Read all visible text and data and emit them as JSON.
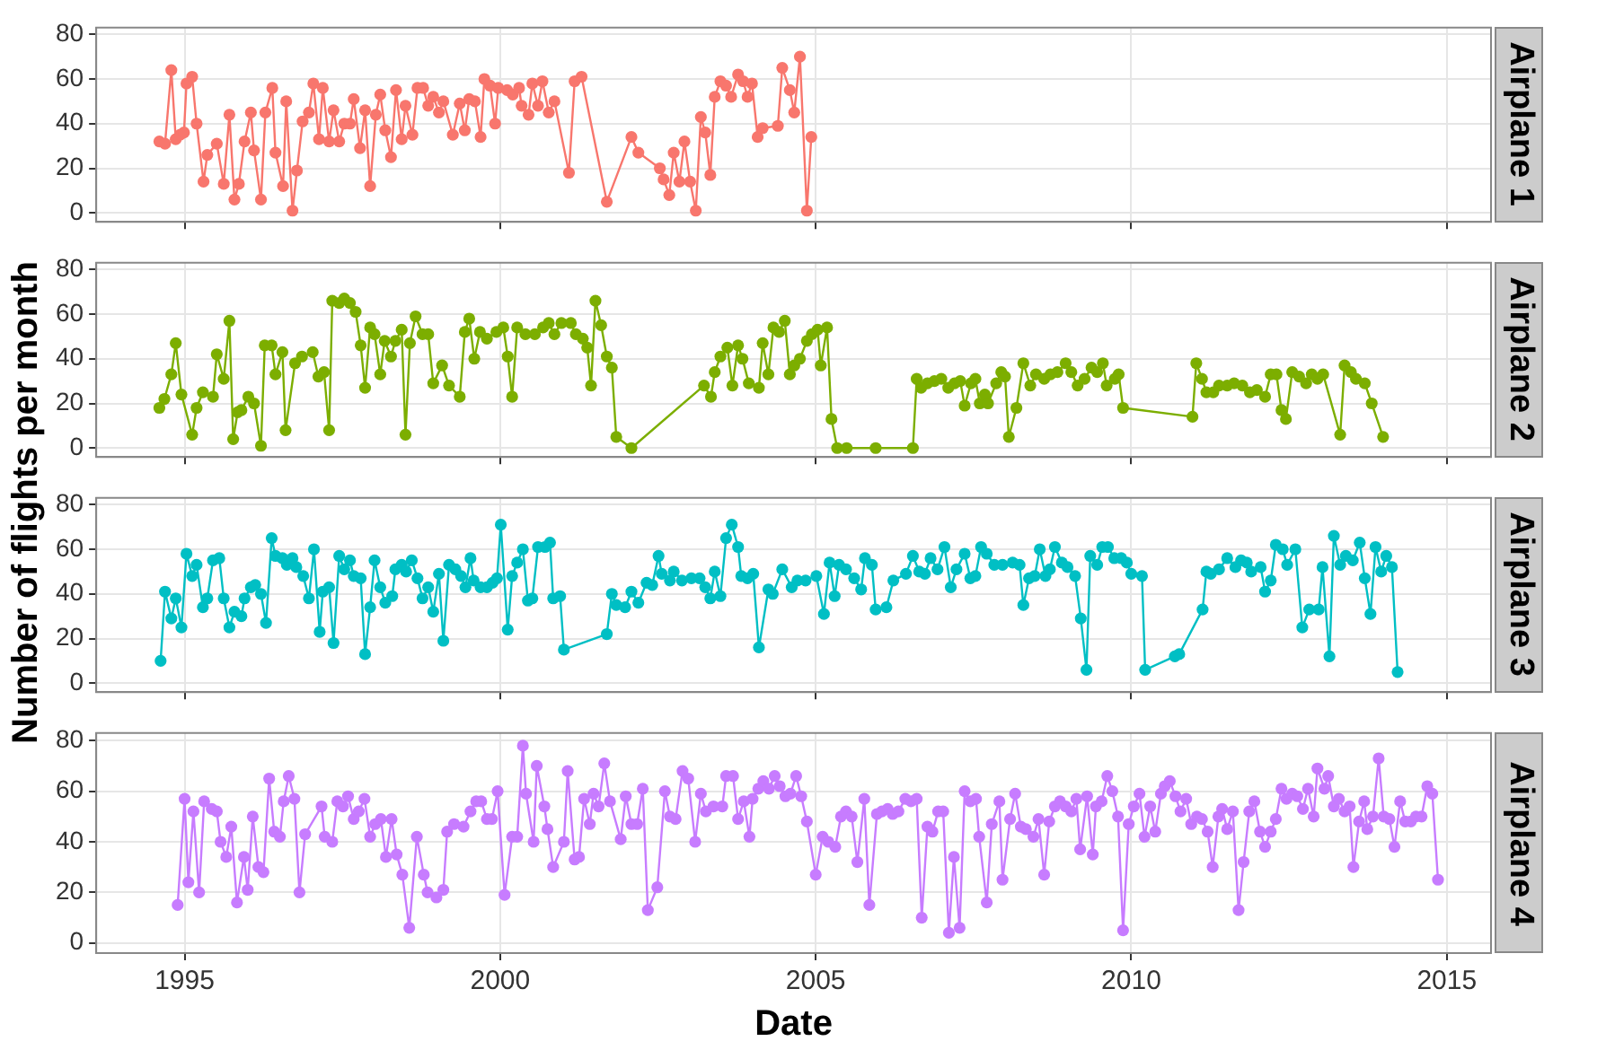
{
  "chart_data": [
    {
      "type": "line",
      "ylabel": "Number of flights per month",
      "marker": "circle",
      "grid": true,
      "legend": false,
      "tick_labels": "y",
      "xlim": [
        1993.6,
        2015.7
      ],
      "xticks": [
        1995,
        2000,
        2005,
        2010,
        2015
      ],
      "ylim": [
        -4,
        83
      ],
      "yticks": [
        0,
        20,
        40,
        60,
        80
      ],
      "series": [
        {
          "name": "Airplane 1",
          "color": "#f8766d",
          "x": [
            1994.6,
            1994.69,
            1994.79,
            1994.86,
            1994.93,
            1994.99,
            1995.03,
            1995.12,
            1995.19,
            1995.3,
            1995.36,
            1995.51,
            1995.62,
            1995.71,
            1995.79,
            1995.86,
            1995.95,
            1996.05,
            1996.1,
            1996.21,
            1996.28,
            1996.39,
            1996.44,
            1996.56,
            1996.61,
            1996.71,
            1996.78,
            1996.87,
            1996.97,
            1997.04,
            1997.13,
            1997.19,
            1997.29,
            1997.36,
            1997.45,
            1997.53,
            1997.62,
            1997.68,
            1997.78,
            1997.86,
            1997.94,
            1998.03,
            1998.1,
            1998.18,
            1998.27,
            1998.35,
            1998.44,
            1998.5,
            1998.61,
            1998.69,
            1998.78,
            1998.86,
            1998.94,
            1999.03,
            1999.1,
            1999.25,
            1999.36,
            1999.44,
            1999.51,
            1999.6,
            1999.69,
            1999.75,
            1999.84,
            1999.92,
            1999.97,
            2000.11,
            2000.2,
            2000.3,
            2000.34,
            2000.45,
            2000.51,
            2000.6,
            2000.67,
            2000.77,
            2000.86,
            2001.09,
            2001.18,
            2001.29,
            2001.69,
            2002.08,
            2002.19,
            2002.53,
            2002.59,
            2002.68,
            2002.75,
            2002.84,
            2002.92,
            2003.01,
            2003.1,
            2003.18,
            2003.25,
            2003.33,
            2003.4,
            2003.49,
            2003.58,
            2003.66,
            2003.77,
            2003.85,
            2003.92,
            2003.99,
            2004.08,
            2004.16,
            2004.4,
            2004.47,
            2004.59,
            2004.66,
            2004.75,
            2004.86,
            2004.93
          ],
          "values": [
            32,
            31,
            64,
            33,
            35,
            36,
            58,
            61,
            40,
            14,
            26,
            31,
            13,
            44,
            6,
            13,
            32,
            45,
            28,
            6,
            45,
            56,
            27,
            12,
            50,
            1,
            19,
            41,
            45,
            58,
            33,
            56,
            32,
            46,
            32,
            40,
            40,
            51,
            29,
            46,
            12,
            44,
            53,
            37,
            25,
            55,
            33,
            48,
            35,
            56,
            56,
            48,
            52,
            45,
            50,
            35,
            49,
            37,
            51,
            50,
            34,
            60,
            57,
            40,
            56,
            55,
            53,
            56,
            48,
            44,
            58,
            48,
            59,
            45,
            50,
            18,
            59,
            61,
            5,
            34,
            27,
            20,
            15,
            8,
            27,
            14,
            32,
            14,
            1,
            43,
            36,
            17,
            52,
            59,
            57,
            52,
            62,
            59,
            52,
            58,
            34,
            38,
            39,
            65,
            55,
            45,
            70,
            1,
            34
          ]
        }
      ]
    },
    {
      "type": "line",
      "marker": "circle",
      "grid": true,
      "legend": false,
      "tick_labels": "y",
      "xlim": [
        1993.6,
        2015.7
      ],
      "xticks": [
        1995,
        2000,
        2005,
        2010,
        2015
      ],
      "ylim": [
        -4,
        83
      ],
      "yticks": [
        0,
        20,
        40,
        60,
        80
      ],
      "series": [
        {
          "name": "Airplane 2",
          "color": "#7cae00",
          "x": [
            1994.6,
            1994.68,
            1994.79,
            1994.86,
            1994.95,
            1995.12,
            1995.19,
            1995.29,
            1995.45,
            1995.51,
            1995.62,
            1995.71,
            1995.77,
            1995.84,
            1995.9,
            1996.01,
            1996.1,
            1996.21,
            1996.27,
            1996.38,
            1996.44,
            1996.55,
            1996.6,
            1996.75,
            1996.86,
            1997.03,
            1997.12,
            1997.21,
            1997.29,
            1997.34,
            1997.45,
            1997.53,
            1997.62,
            1997.71,
            1997.79,
            1997.86,
            1997.94,
            1998.01,
            1998.1,
            1998.17,
            1998.27,
            1998.34,
            1998.44,
            1998.5,
            1998.57,
            1998.66,
            1998.77,
            1998.86,
            1998.94,
            1999.08,
            1999.19,
            1999.36,
            1999.44,
            1999.51,
            1999.59,
            1999.68,
            1999.79,
            1999.94,
            2000.05,
            2000.12,
            2000.19,
            2000.27,
            2000.4,
            2000.55,
            2000.68,
            2000.77,
            2000.86,
            2000.97,
            2001.12,
            2001.2,
            2001.31,
            2001.38,
            2001.44,
            2001.51,
            2001.6,
            2001.69,
            2001.77,
            2001.84,
            2002.08,
            2003.23,
            2003.34,
            2003.4,
            2003.49,
            2003.6,
            2003.68,
            2003.77,
            2003.84,
            2003.94,
            2004.1,
            2004.16,
            2004.25,
            2004.33,
            2004.42,
            2004.51,
            2004.59,
            2004.66,
            2004.75,
            2004.86,
            2004.94,
            2005.03,
            2005.08,
            2005.18,
            2005.25,
            2005.34,
            2005.49,
            2005.95,
            2006.54,
            2006.6,
            2006.67,
            2006.77,
            2006.88,
            2006.99,
            2007.1,
            2007.2,
            2007.29,
            2007.36,
            2007.46,
            2007.53,
            2007.6,
            2007.68,
            2007.73,
            2007.86,
            2007.94,
            2008.0,
            2008.06,
            2008.18,
            2008.29,
            2008.4,
            2008.49,
            2008.62,
            2008.72,
            2008.83,
            2008.96,
            2009.05,
            2009.15,
            2009.26,
            2009.37,
            2009.46,
            2009.55,
            2009.61,
            2009.74,
            2009.8,
            2009.87,
            2010.97,
            2011.03,
            2011.12,
            2011.19,
            2011.3,
            2011.39,
            2011.52,
            2011.63,
            2011.76,
            2011.88,
            2011.99,
            2012.12,
            2012.21,
            2012.3,
            2012.38,
            2012.45,
            2012.55,
            2012.66,
            2012.77,
            2012.86,
            2012.95,
            2013.04,
            2013.31,
            2013.38,
            2013.48,
            2013.56,
            2013.7,
            2013.81,
            2013.99
          ],
          "values": [
            18,
            22,
            33,
            47,
            24,
            6,
            18,
            25,
            23,
            42,
            31,
            57,
            4,
            16,
            17,
            23,
            20,
            1,
            46,
            46,
            33,
            43,
            8,
            38,
            41,
            43,
            32,
            34,
            8,
            66,
            65,
            67,
            65,
            61,
            46,
            27,
            54,
            51,
            33,
            48,
            41,
            48,
            53,
            6,
            47,
            59,
            51,
            51,
            29,
            37,
            28,
            23,
            52,
            58,
            40,
            52,
            49,
            52,
            54,
            41,
            23,
            54,
            51,
            51,
            54,
            56,
            51,
            56,
            56,
            51,
            49,
            45,
            28,
            66,
            55,
            41,
            36,
            5,
            0,
            28,
            23,
            34,
            41,
            45,
            28,
            46,
            40,
            29,
            27,
            47,
            33,
            54,
            52,
            57,
            33,
            37,
            40,
            48,
            51,
            53,
            37,
            54,
            13,
            0,
            0,
            0,
            0,
            31,
            27,
            29,
            30,
            31,
            27,
            29,
            30,
            19,
            29,
            31,
            20,
            24,
            20,
            29,
            34,
            32,
            5,
            18,
            38,
            28,
            33,
            31,
            33,
            34,
            38,
            34,
            28,
            31,
            36,
            34,
            38,
            28,
            31,
            33,
            18,
            14,
            38,
            31,
            25,
            25,
            28,
            28,
            29,
            28,
            25,
            26,
            23,
            33,
            33,
            17,
            13,
            34,
            32,
            29,
            33,
            31,
            33,
            6,
            37,
            34,
            31,
            29,
            20,
            5
          ]
        }
      ]
    },
    {
      "type": "line",
      "marker": "circle",
      "grid": true,
      "legend": false,
      "tick_labels": "y",
      "xlim": [
        1993.6,
        2015.7
      ],
      "xticks": [
        1995,
        2000,
        2005,
        2010,
        2015
      ],
      "ylim": [
        -4,
        83
      ],
      "yticks": [
        0,
        20,
        40,
        60,
        80
      ],
      "series": [
        {
          "name": "Airplane 3",
          "color": "#00bfc4",
          "x": [
            1994.62,
            1994.69,
            1994.79,
            1994.86,
            1994.95,
            1995.03,
            1995.12,
            1995.19,
            1995.29,
            1995.36,
            1995.45,
            1995.55,
            1995.62,
            1995.71,
            1995.79,
            1995.9,
            1995.95,
            1996.05,
            1996.12,
            1996.21,
            1996.29,
            1996.38,
            1996.44,
            1996.55,
            1996.62,
            1996.71,
            1996.77,
            1996.88,
            1996.97,
            1997.05,
            1997.14,
            1997.19,
            1997.29,
            1997.36,
            1997.45,
            1997.53,
            1997.62,
            1997.68,
            1997.79,
            1997.86,
            1997.94,
            1998.01,
            1998.1,
            1998.18,
            1998.29,
            1998.34,
            1998.44,
            1998.51,
            1998.6,
            1998.69,
            1998.77,
            1998.86,
            1998.94,
            1999.03,
            1999.1,
            1999.19,
            1999.29,
            1999.38,
            1999.45,
            1999.53,
            1999.58,
            1999.69,
            1999.79,
            1999.88,
            1999.95,
            2000.01,
            2000.12,
            2000.19,
            2000.27,
            2000.36,
            2000.44,
            2000.51,
            2000.6,
            2000.71,
            2000.79,
            2000.84,
            2000.95,
            2001.01,
            2001.69,
            2001.77,
            2001.84,
            2001.98,
            2002.08,
            2002.19,
            2002.32,
            2002.41,
            2002.51,
            2002.56,
            2002.69,
            2002.75,
            2002.88,
            2003.03,
            2003.16,
            2003.25,
            2003.33,
            2003.4,
            2003.49,
            2003.58,
            2003.67,
            2003.77,
            2003.82,
            2003.92,
            2004.01,
            2004.1,
            2004.25,
            2004.32,
            2004.47,
            2004.62,
            2004.71,
            2004.84,
            2005.01,
            2005.13,
            2005.22,
            2005.3,
            2005.37,
            2005.48,
            2005.61,
            2005.72,
            2005.78,
            2005.89,
            2005.95,
            2006.12,
            2006.23,
            2006.43,
            2006.54,
            2006.64,
            2006.73,
            2006.82,
            2006.93,
            2007.04,
            2007.14,
            2007.23,
            2007.36,
            2007.45,
            2007.53,
            2007.62,
            2007.71,
            2007.83,
            2007.96,
            2008.12,
            2008.23,
            2008.29,
            2008.38,
            2008.47,
            2008.55,
            2008.64,
            2008.71,
            2008.79,
            2008.9,
            2008.99,
            2009.11,
            2009.2,
            2009.29,
            2009.35,
            2009.46,
            2009.54,
            2009.63,
            2009.73,
            2009.84,
            2009.93,
            2010.0,
            2010.17,
            2010.22,
            2010.69,
            2010.76,
            2011.13,
            2011.19,
            2011.26,
            2011.39,
            2011.52,
            2011.65,
            2011.74,
            2011.83,
            2011.9,
            2012.05,
            2012.12,
            2012.21,
            2012.29,
            2012.4,
            2012.47,
            2012.6,
            2012.71,
            2012.82,
            2012.97,
            2013.03,
            2013.14,
            2013.21,
            2013.31,
            2013.4,
            2013.51,
            2013.62,
            2013.7,
            2013.79,
            2013.87,
            2013.96,
            2014.04,
            2014.13,
            2014.22
          ],
          "values": [
            10,
            41,
            29,
            38,
            25,
            58,
            48,
            53,
            34,
            38,
            55,
            56,
            38,
            25,
            32,
            30,
            38,
            43,
            44,
            40,
            27,
            65,
            57,
            56,
            53,
            56,
            52,
            48,
            38,
            60,
            23,
            41,
            43,
            18,
            57,
            51,
            55,
            48,
            47,
            13,
            34,
            55,
            43,
            36,
            39,
            51,
            53,
            50,
            55,
            47,
            38,
            43,
            32,
            49,
            19,
            53,
            51,
            48,
            43,
            56,
            46,
            43,
            43,
            45,
            47,
            71,
            24,
            48,
            54,
            60,
            37,
            38,
            61,
            61,
            63,
            38,
            39,
            15,
            22,
            40,
            35,
            34,
            41,
            36,
            45,
            44,
            57,
            49,
            46,
            50,
            46,
            47,
            47,
            43,
            38,
            50,
            39,
            65,
            71,
            61,
            48,
            47,
            49,
            16,
            42,
            40,
            51,
            43,
            46,
            46,
            48,
            31,
            54,
            39,
            53,
            51,
            47,
            42,
            56,
            53,
            33,
            34,
            46,
            49,
            57,
            50,
            49,
            56,
            51,
            61,
            43,
            51,
            58,
            47,
            48,
            61,
            58,
            53,
            53,
            54,
            53,
            35,
            47,
            48,
            60,
            48,
            51,
            61,
            54,
            52,
            48,
            29,
            6,
            57,
            53,
            61,
            61,
            56,
            56,
            54,
            49,
            48,
            6,
            12,
            13,
            33,
            50,
            49,
            51,
            56,
            52,
            55,
            54,
            50,
            52,
            41,
            46,
            62,
            60,
            53,
            60,
            25,
            33,
            33,
            52,
            12,
            66,
            53,
            57,
            55,
            63,
            47,
            31,
            61,
            50,
            57,
            52,
            5
          ]
        }
      ]
    },
    {
      "type": "line",
      "xlabel": "Date",
      "marker": "circle",
      "grid": true,
      "legend": false,
      "xlim": [
        1993.6,
        2015.7
      ],
      "xticks": [
        1995,
        2000,
        2005,
        2010,
        2015
      ],
      "ylim": [
        -4,
        83
      ],
      "yticks": [
        0,
        20,
        40,
        60,
        80
      ],
      "series": [
        {
          "name": "Airplane 4",
          "color": "#c77cff",
          "x": [
            1994.89,
            1995.0,
            1995.06,
            1995.14,
            1995.23,
            1995.31,
            1995.43,
            1995.51,
            1995.57,
            1995.66,
            1995.74,
            1995.83,
            1995.94,
            1996.0,
            1996.08,
            1996.17,
            1996.25,
            1996.34,
            1996.42,
            1996.51,
            1996.57,
            1996.65,
            1996.74,
            1996.82,
            1996.91,
            1997.17,
            1997.22,
            1997.34,
            1997.42,
            1997.51,
            1997.59,
            1997.68,
            1997.76,
            1997.85,
            1997.94,
            1998.02,
            1998.11,
            1998.19,
            1998.28,
            1998.36,
            1998.45,
            1998.56,
            1998.68,
            1998.79,
            1998.85,
            1998.99,
            1999.1,
            1999.16,
            1999.27,
            1999.42,
            1999.53,
            1999.62,
            1999.7,
            1999.79,
            1999.87,
            1999.96,
            2000.07,
            2000.19,
            2000.27,
            2000.36,
            2000.41,
            2000.53,
            2000.58,
            2000.7,
            2000.75,
            2000.84,
            2001.01,
            2001.07,
            2001.18,
            2001.25,
            2001.33,
            2001.42,
            2001.48,
            2001.56,
            2001.65,
            2001.74,
            2001.91,
            2001.99,
            2002.08,
            2002.17,
            2002.26,
            2002.34,
            2002.49,
            2002.61,
            2002.69,
            2002.78,
            2002.89,
            2002.98,
            2003.09,
            2003.18,
            2003.26,
            2003.38,
            2003.52,
            2003.58,
            2003.69,
            2003.77,
            2003.86,
            2003.95,
            2004.0,
            2004.09,
            2004.17,
            2004.26,
            2004.35,
            2004.43,
            2004.52,
            2004.6,
            2004.69,
            2004.77,
            2004.86,
            2005.0,
            2005.11,
            2005.2,
            2005.31,
            2005.4,
            2005.48,
            2005.57,
            2005.66,
            2005.77,
            2005.85,
            2005.97,
            2006.05,
            2006.14,
            2006.22,
            2006.31,
            2006.42,
            2006.51,
            2006.6,
            2006.68,
            2006.77,
            2006.85,
            2006.94,
            2007.02,
            2007.11,
            2007.19,
            2007.28,
            2007.36,
            2007.45,
            2007.54,
            2007.59,
            2007.71,
            2007.79,
            2007.91,
            2007.96,
            2008.08,
            2008.16,
            2008.25,
            2008.33,
            2008.45,
            2008.53,
            2008.62,
            2008.7,
            2008.79,
            2008.87,
            2008.96,
            2009.05,
            2009.13,
            2009.19,
            2009.3,
            2009.39,
            2009.44,
            2009.53,
            2009.62,
            2009.7,
            2009.79,
            2009.87,
            2009.96,
            2010.04,
            2010.13,
            2010.21,
            2010.3,
            2010.38,
            2010.47,
            2010.53,
            2010.61,
            2010.7,
            2010.78,
            2010.87,
            2010.95,
            2011.04,
            2011.12,
            2011.21,
            2011.29,
            2011.38,
            2011.44,
            2011.52,
            2011.61,
            2011.7,
            2011.78,
            2011.87,
            2011.95,
            2012.04,
            2012.12,
            2012.21,
            2012.29,
            2012.38,
            2012.46,
            2012.55,
            2012.63,
            2012.72,
            2012.8,
            2012.89,
            2012.95,
            2013.06,
            2013.12,
            2013.21,
            2013.29,
            2013.38,
            2013.46,
            2013.52,
            2013.61,
            2013.69,
            2013.74,
            2013.83,
            2013.92,
            2014.0,
            2014.09,
            2014.17,
            2014.26,
            2014.34,
            2014.43,
            2014.51,
            2014.6,
            2014.69,
            2014.77,
            2014.86
          ],
          "values": [
            15,
            57,
            24,
            52,
            20,
            56,
            53,
            52,
            40,
            34,
            46,
            16,
            34,
            21,
            50,
            30,
            28,
            65,
            44,
            42,
            56,
            66,
            57,
            20,
            43,
            54,
            42,
            40,
            56,
            54,
            58,
            49,
            52,
            57,
            42,
            47,
            49,
            34,
            49,
            35,
            27,
            6,
            42,
            27,
            20,
            18,
            21,
            44,
            47,
            46,
            52,
            56,
            56,
            49,
            49,
            60,
            19,
            42,
            42,
            78,
            59,
            40,
            70,
            54,
            45,
            30,
            40,
            68,
            33,
            34,
            57,
            47,
            59,
            54,
            71,
            56,
            41,
            58,
            47,
            47,
            61,
            13,
            22,
            60,
            50,
            49,
            68,
            65,
            40,
            59,
            52,
            54,
            54,
            66,
            66,
            49,
            56,
            42,
            57,
            61,
            64,
            61,
            66,
            62,
            58,
            59,
            66,
            58,
            48,
            27,
            42,
            40,
            38,
            50,
            52,
            50,
            32,
            57,
            15,
            51,
            52,
            53,
            51,
            52,
            57,
            56,
            57,
            10,
            46,
            44,
            52,
            52,
            4,
            34,
            6,
            60,
            56,
            57,
            42,
            16,
            47,
            56,
            25,
            49,
            59,
            46,
            45,
            42,
            49,
            27,
            48,
            54,
            56,
            54,
            52,
            57,
            37,
            58,
            35,
            54,
            56,
            66,
            60,
            50,
            5,
            47,
            54,
            59,
            42,
            54,
            44,
            59,
            62,
            64,
            58,
            52,
            57,
            47,
            50,
            49,
            44,
            30,
            50,
            53,
            45,
            52,
            13,
            32,
            52,
            56,
            44,
            38,
            44,
            49,
            61,
            57,
            59,
            58,
            53,
            61,
            50,
            69,
            61,
            66,
            54,
            57,
            52,
            54,
            30,
            48,
            56,
            45,
            50,
            73,
            50,
            49,
            38,
            56,
            48,
            48,
            50,
            50,
            62,
            59,
            25
          ]
        }
      ]
    }
  ]
}
